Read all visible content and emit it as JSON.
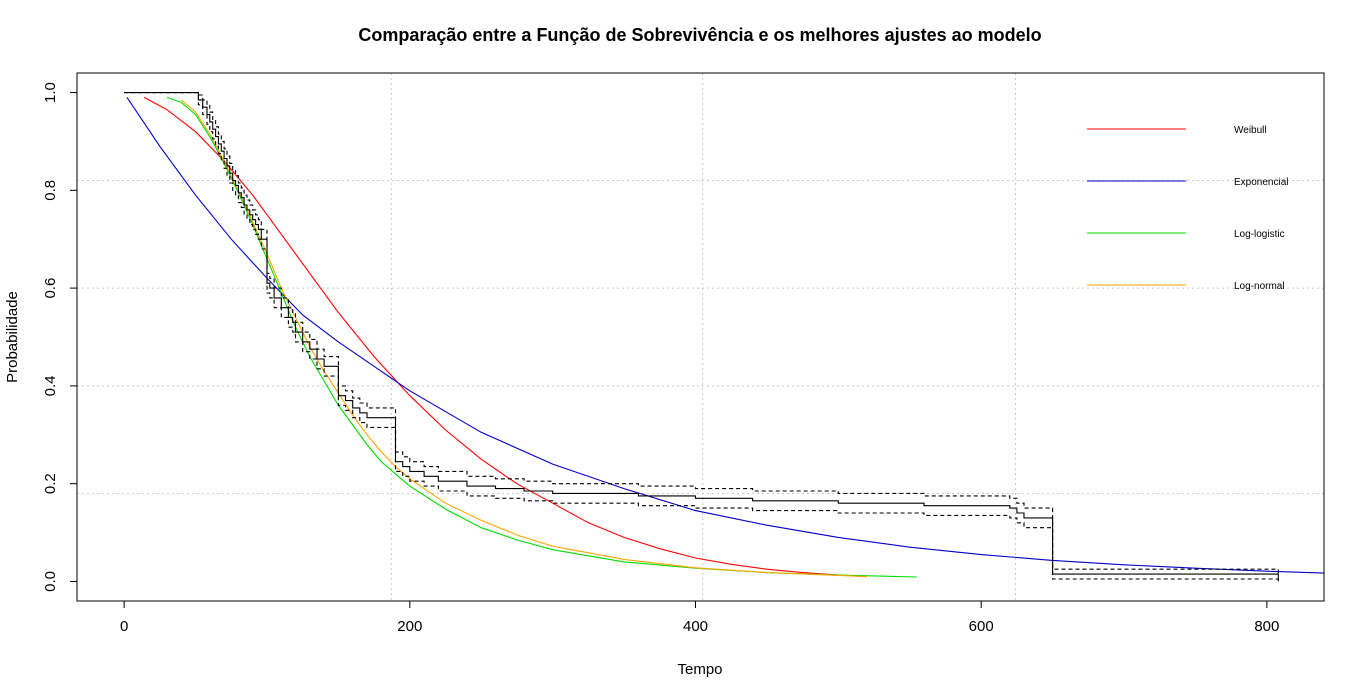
{
  "chart_data": {
    "type": "line",
    "title": "Comparação entre a Função de Sobrevivência e os melhores ajustes ao modelo",
    "xlabel": "Tempo",
    "ylabel": "Probabilidade",
    "xlim": [
      -33,
      840
    ],
    "ylim": [
      -0.04,
      1.04
    ],
    "x_ticks": [
      0,
      200,
      400,
      600,
      800
    ],
    "x_tick_labels": [
      "0",
      "200",
      "400",
      "600",
      "800"
    ],
    "y_ticks": [
      0.0,
      0.2,
      0.4,
      0.6,
      0.8,
      1.0
    ],
    "y_tick_labels": [
      "0.0",
      "0.2",
      "0.4",
      "0.6",
      "0.8",
      "1.0"
    ],
    "grid": true,
    "grid_x": [
      187,
      405,
      624
    ],
    "grid_y": [
      0.18,
      0.4,
      0.6,
      0.82
    ],
    "legend_position": "top-right",
    "legend": [
      {
        "name": "Weibull",
        "color": "#ff0000"
      },
      {
        "name": "Exponencial",
        "color": "#0000cc"
      },
      {
        "name": "Log-logistic",
        "color": "#00dd00"
      },
      {
        "name": "Log-normal",
        "color": "#ffa500"
      }
    ],
    "series": [
      {
        "name": "Weibull",
        "color": "#ff0000",
        "x": [
          14,
          30,
          50,
          70,
          90,
          110,
          130,
          150,
          175,
          200,
          225,
          250,
          275,
          300,
          325,
          350,
          375,
          400,
          425,
          450,
          475,
          500,
          520
        ],
        "y": [
          0.99,
          0.965,
          0.92,
          0.86,
          0.79,
          0.71,
          0.63,
          0.55,
          0.46,
          0.38,
          0.31,
          0.25,
          0.2,
          0.16,
          0.12,
          0.09,
          0.067,
          0.048,
          0.035,
          0.025,
          0.018,
          0.013,
          0.01
        ]
      },
      {
        "name": "Exponencial",
        "color": "#0000cc",
        "x": [
          2,
          25,
          50,
          75,
          100,
          125,
          150,
          200,
          250,
          300,
          350,
          400,
          450,
          500,
          550,
          600,
          650,
          700,
          750,
          800,
          840
        ],
        "y": [
          0.99,
          0.89,
          0.79,
          0.7,
          0.62,
          0.545,
          0.49,
          0.39,
          0.305,
          0.24,
          0.19,
          0.145,
          0.115,
          0.09,
          0.07,
          0.055,
          0.043,
          0.034,
          0.027,
          0.021,
          0.017
        ]
      },
      {
        "name": "Log-logistic",
        "color": "#00dd00",
        "x": [
          30,
          40,
          50,
          60,
          70,
          80,
          90,
          100,
          110,
          120,
          130,
          140,
          150,
          160,
          170,
          180,
          190,
          200,
          225,
          250,
          275,
          300,
          350,
          400,
          450,
          500,
          555
        ],
        "y": [
          0.99,
          0.98,
          0.955,
          0.91,
          0.855,
          0.795,
          0.73,
          0.66,
          0.59,
          0.52,
          0.46,
          0.41,
          0.36,
          0.32,
          0.28,
          0.245,
          0.22,
          0.195,
          0.148,
          0.11,
          0.085,
          0.065,
          0.04,
          0.027,
          0.018,
          0.013,
          0.009
        ]
      },
      {
        "name": "Log-normal",
        "color": "#ffa500",
        "x": [
          40,
          50,
          60,
          70,
          80,
          90,
          100,
          110,
          120,
          130,
          140,
          150,
          160,
          170,
          180,
          190,
          200,
          225,
          250,
          275,
          300,
          350,
          400,
          450,
          520
        ],
        "y": [
          0.985,
          0.96,
          0.915,
          0.86,
          0.8,
          0.735,
          0.67,
          0.6,
          0.54,
          0.48,
          0.43,
          0.385,
          0.34,
          0.3,
          0.265,
          0.235,
          0.21,
          0.16,
          0.125,
          0.095,
          0.072,
          0.045,
          0.028,
          0.018,
          0.01
        ]
      },
      {
        "name": "",
        "color": "#000000",
        "style": "step",
        "x": [
          0,
          52,
          55,
          58,
          60,
          62,
          64,
          66,
          68,
          70,
          72,
          74,
          76,
          78,
          80,
          82,
          84,
          86,
          88,
          90,
          92,
          94,
          96,
          100,
          100,
          102,
          105,
          110,
          115,
          118,
          120,
          125,
          130,
          135,
          140,
          150,
          155,
          160,
          165,
          170,
          190,
          190,
          195,
          200,
          210,
          220,
          240,
          260,
          280,
          300,
          360,
          400,
          440,
          500,
          560,
          620,
          625,
          630,
          650,
          650,
          800,
          808
        ],
        "y": [
          1.0,
          0.985,
          0.97,
          0.955,
          0.94,
          0.925,
          0.91,
          0.895,
          0.88,
          0.865,
          0.85,
          0.835,
          0.82,
          0.81,
          0.795,
          0.785,
          0.77,
          0.76,
          0.75,
          0.74,
          0.73,
          0.72,
          0.7,
          0.66,
          0.61,
          0.6,
          0.58,
          0.56,
          0.54,
          0.53,
          0.51,
          0.49,
          0.475,
          0.455,
          0.44,
          0.38,
          0.37,
          0.355,
          0.345,
          0.335,
          0.335,
          0.245,
          0.235,
          0.225,
          0.215,
          0.205,
          0.195,
          0.19,
          0.185,
          0.18,
          0.175,
          0.17,
          0.165,
          0.16,
          0.155,
          0.15,
          0.14,
          0.13,
          0.13,
          0.015,
          0.015,
          0.0
        ]
      },
      {
        "name": "",
        "color": "#000000",
        "style": "step-dashed",
        "x": [
          0,
          52,
          55,
          58,
          60,
          62,
          64,
          66,
          68,
          70,
          72,
          74,
          76,
          78,
          80,
          82,
          84,
          86,
          88,
          90,
          92,
          94,
          96,
          100,
          100,
          102,
          105,
          110,
          115,
          118,
          120,
          125,
          130,
          135,
          140,
          150,
          155,
          160,
          165,
          170,
          190,
          190,
          195,
          200,
          210,
          220,
          240,
          260,
          280,
          300,
          360,
          400,
          440,
          500,
          560,
          620,
          625,
          630,
          650,
          650,
          800,
          808
        ],
        "y": [
          1.0,
          0.995,
          0.985,
          0.975,
          0.96,
          0.945,
          0.93,
          0.915,
          0.9,
          0.885,
          0.87,
          0.855,
          0.84,
          0.83,
          0.815,
          0.805,
          0.79,
          0.78,
          0.77,
          0.76,
          0.75,
          0.74,
          0.72,
          0.68,
          0.63,
          0.62,
          0.6,
          0.58,
          0.56,
          0.55,
          0.53,
          0.51,
          0.495,
          0.475,
          0.46,
          0.4,
          0.39,
          0.375,
          0.365,
          0.355,
          0.355,
          0.265,
          0.255,
          0.245,
          0.235,
          0.225,
          0.215,
          0.21,
          0.205,
          0.2,
          0.195,
          0.19,
          0.185,
          0.18,
          0.175,
          0.17,
          0.16,
          0.15,
          0.15,
          0.025,
          0.025,
          0.015
        ]
      },
      {
        "name": "",
        "color": "#000000",
        "style": "step-dashed",
        "x": [
          0,
          52,
          55,
          58,
          60,
          62,
          64,
          66,
          68,
          70,
          72,
          74,
          76,
          78,
          80,
          82,
          84,
          86,
          88,
          90,
          92,
          94,
          96,
          100,
          100,
          102,
          105,
          110,
          115,
          118,
          120,
          125,
          130,
          135,
          140,
          150,
          155,
          160,
          165,
          170,
          190,
          190,
          195,
          200,
          210,
          220,
          240,
          260,
          280,
          300,
          360,
          400,
          440,
          500,
          560,
          620,
          625,
          630,
          650,
          650,
          800,
          808
        ],
        "y": [
          1.0,
          0.975,
          0.955,
          0.935,
          0.92,
          0.905,
          0.89,
          0.875,
          0.86,
          0.845,
          0.83,
          0.815,
          0.8,
          0.79,
          0.775,
          0.765,
          0.75,
          0.74,
          0.73,
          0.72,
          0.71,
          0.7,
          0.68,
          0.64,
          0.59,
          0.58,
          0.56,
          0.54,
          0.52,
          0.51,
          0.49,
          0.47,
          0.455,
          0.435,
          0.42,
          0.36,
          0.35,
          0.335,
          0.325,
          0.315,
          0.315,
          0.225,
          0.215,
          0.205,
          0.195,
          0.185,
          0.175,
          0.17,
          0.165,
          0.16,
          0.155,
          0.15,
          0.145,
          0.14,
          0.135,
          0.13,
          0.12,
          0.11,
          0.11,
          0.005,
          0.005,
          0.0
        ]
      }
    ]
  }
}
